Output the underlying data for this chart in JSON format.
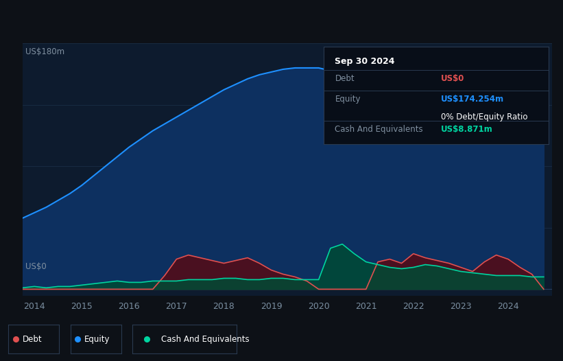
{
  "background_color": "#0d1117",
  "plot_bg_color": "#0d1b2e",
  "years_x": [
    2013.75,
    2014.0,
    2014.25,
    2014.5,
    2014.75,
    2015.0,
    2015.25,
    2015.5,
    2015.75,
    2016.0,
    2016.25,
    2016.5,
    2016.75,
    2017.0,
    2017.25,
    2017.5,
    2017.75,
    2018.0,
    2018.25,
    2018.5,
    2018.75,
    2019.0,
    2019.25,
    2019.5,
    2019.75,
    2020.0,
    2020.25,
    2020.5,
    2020.75,
    2021.0,
    2021.25,
    2021.5,
    2021.75,
    2022.0,
    2022.25,
    2022.5,
    2022.75,
    2023.0,
    2023.25,
    2023.5,
    2023.75,
    2024.0,
    2024.25,
    2024.5,
    2024.75
  ],
  "equity": [
    52,
    56,
    60,
    65,
    70,
    76,
    83,
    90,
    97,
    104,
    110,
    116,
    121,
    126,
    131,
    136,
    141,
    146,
    150,
    154,
    157,
    159,
    161,
    162,
    162,
    162,
    160,
    175,
    115,
    108,
    118,
    128,
    137,
    143,
    146,
    150,
    153,
    150,
    149,
    154,
    157,
    158,
    163,
    168,
    175
  ],
  "debt": [
    -2,
    -1,
    -1,
    -1,
    -2,
    -2,
    -2,
    -3,
    -3,
    -2,
    -2,
    -1,
    10,
    22,
    25,
    23,
    21,
    19,
    21,
    23,
    19,
    14,
    11,
    9,
    6,
    -2,
    -3,
    -3,
    -3,
    -3,
    20,
    22,
    19,
    26,
    23,
    21,
    19,
    16,
    13,
    20,
    25,
    22,
    16,
    11,
    -2
  ],
  "cash": [
    1,
    2,
    1,
    2,
    2,
    3,
    4,
    5,
    6,
    5,
    5,
    6,
    6,
    6,
    7,
    7,
    7,
    8,
    8,
    7,
    7,
    8,
    8,
    7,
    7,
    7,
    30,
    33,
    26,
    20,
    18,
    16,
    15,
    16,
    18,
    17,
    15,
    13,
    12,
    11,
    10,
    10,
    10,
    9,
    9
  ],
  "equity_color": "#1e90ff",
  "equity_fill": "#0d3060",
  "debt_color": "#e05050",
  "debt_fill": "#4a1020",
  "cash_color": "#00d4a0",
  "cash_fill": "#004a35",
  "ylim": [
    -5,
    180
  ],
  "xlim": [
    2013.75,
    2024.92
  ],
  "ylabel_text": "US$180m",
  "ylabel0_text": "US$0",
  "xtick_labels": [
    "2014",
    "2015",
    "2016",
    "2017",
    "2018",
    "2019",
    "2020",
    "2021",
    "2022",
    "2023",
    "2024"
  ],
  "xtick_positions": [
    2014,
    2015,
    2016,
    2017,
    2018,
    2019,
    2020,
    2021,
    2022,
    2023,
    2024
  ],
  "grid_color": "#1a2d45",
  "grid_y_vals": [
    0,
    45,
    90,
    135,
    180
  ],
  "tooltip_title": "Sep 30 2024",
  "tooltip_debt_label": "Debt",
  "tooltip_debt_value": "US$0",
  "tooltip_equity_label": "Equity",
  "tooltip_equity_value": "US$174.254m",
  "tooltip_ratio_value": "0% Debt/Equity Ratio",
  "tooltip_cash_label": "Cash And Equivalents",
  "tooltip_cash_value": "US$8.871m",
  "legend_labels": [
    "Debt",
    "Equity",
    "Cash And Equivalents"
  ],
  "legend_colors": [
    "#e05050",
    "#1e90ff",
    "#00d4a0"
  ]
}
